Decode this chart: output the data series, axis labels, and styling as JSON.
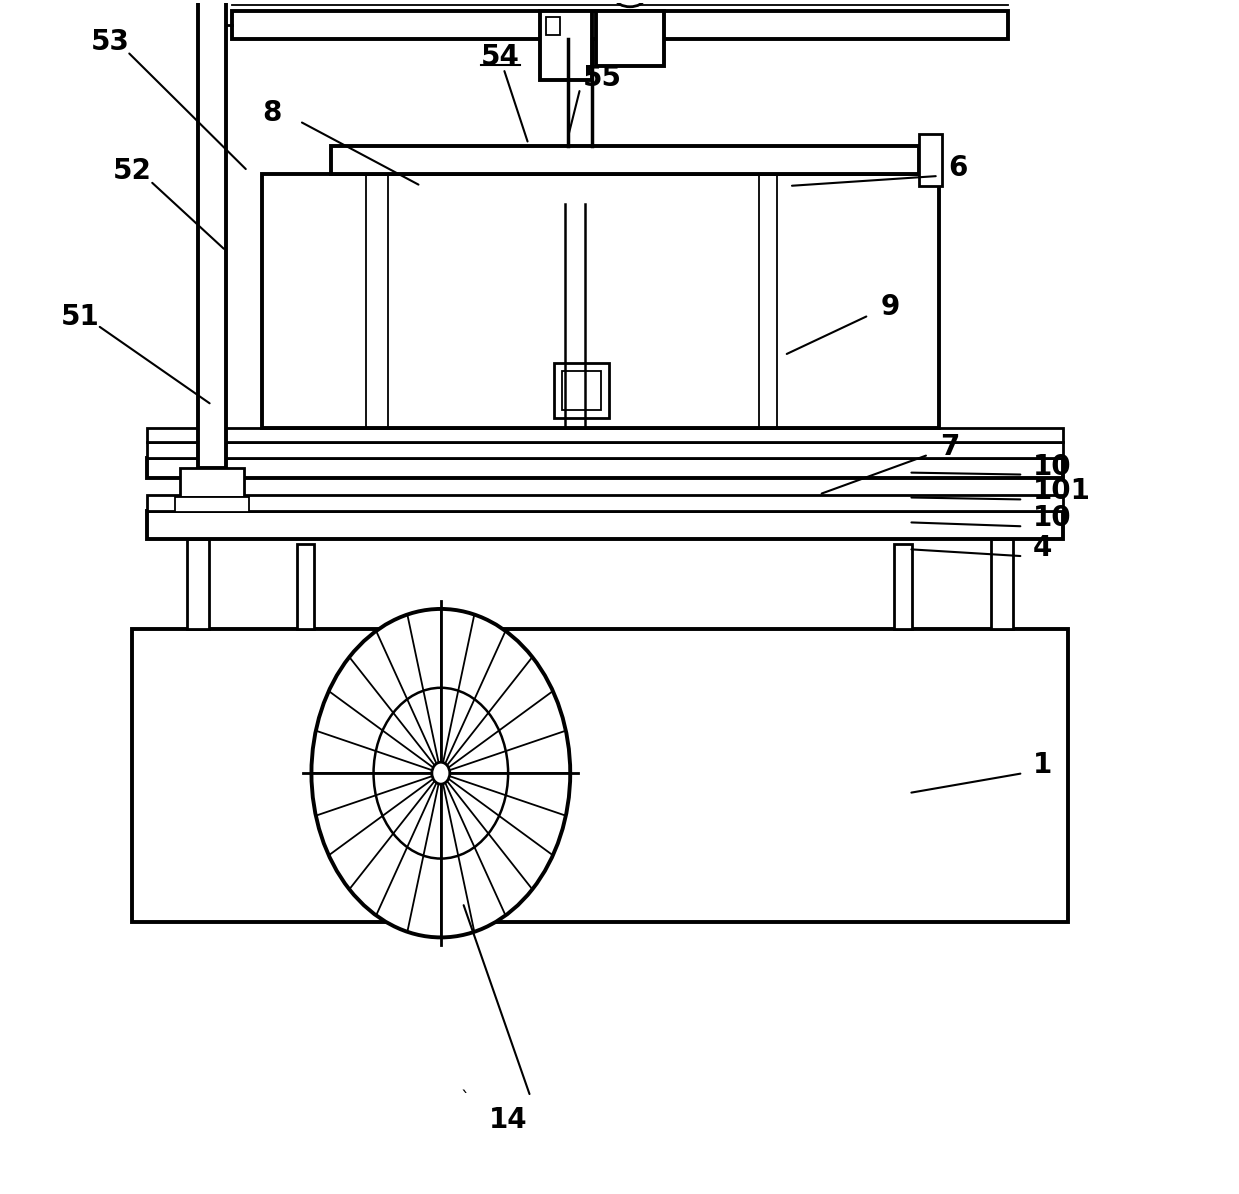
{
  "bg_color": "#ffffff",
  "line_color": "#000000",
  "lw": 2.0,
  "lw_thin": 1.3,
  "lw_thick": 2.8,
  "fig_width": 12.39,
  "fig_height": 11.94
}
